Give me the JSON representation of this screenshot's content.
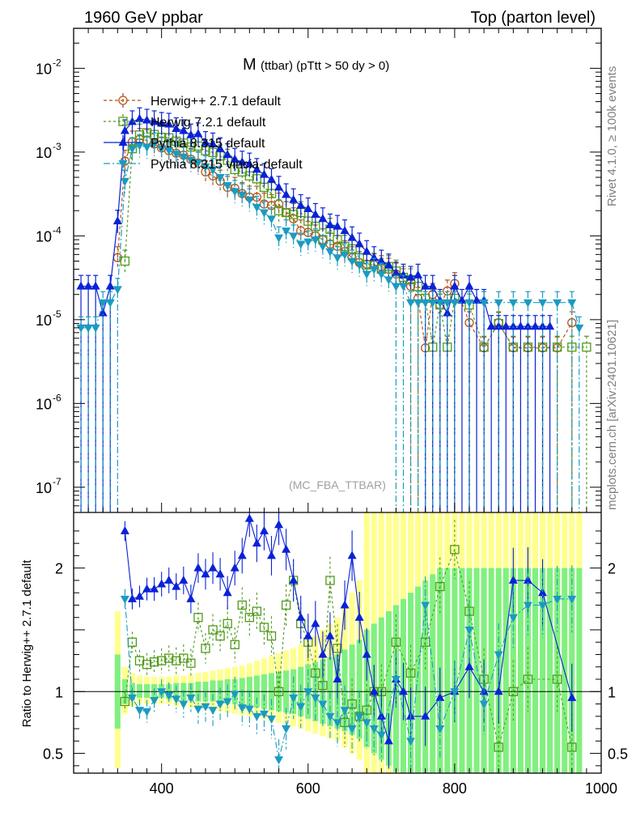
{
  "header": {
    "left": "1960 GeV ppbar",
    "right": "Top (parton level)"
  },
  "side_labels": {
    "rivet": "Rivet 4.1.0, ≥ 100k events",
    "mcplots": "mcplots.cern.ch [arXiv:2401.10621]"
  },
  "colors": {
    "herwigpp": "#b5541b",
    "herwig7": "#4f9a1a",
    "pythia": "#0a22d6",
    "vincia": "#1a9bc0",
    "band_yellow": "#ffff8c",
    "band_green": "#80f080"
  },
  "chart_data": {
    "type": "line",
    "title_main": "M",
    "title_sub": "(ttbar) (pTtt > 50 dy > 0)",
    "watermark": "(MC_FBA_TTBAR)",
    "xlabel": "",
    "ylabel_ratio": "Ratio to Herwig++ 2.7.1 default",
    "xlim": [
      280,
      1000
    ],
    "ylim_main": [
      5e-08,
      0.03
    ],
    "ylim_ratio": [
      0.34,
      2.45
    ],
    "xticks": [
      400,
      600,
      800,
      1000
    ],
    "yticks_main": [
      {
        "mant": "10",
        "exp": "-2",
        "v": 0.01
      },
      {
        "mant": "10",
        "exp": "-3",
        "v": 0.001
      },
      {
        "mant": "10",
        "exp": "-4",
        "v": 0.0001
      },
      {
        "mant": "10",
        "exp": "-5",
        "v": 1e-05
      },
      {
        "mant": "10",
        "exp": "-6",
        "v": 1e-06
      },
      {
        "mant": "10",
        "exp": "-7",
        "v": 1e-07
      }
    ],
    "yticks_ratio": [
      {
        "label": "0.5",
        "v": 0.5
      },
      {
        "label": "1",
        "v": 1
      },
      {
        "label": "2",
        "v": 2
      }
    ],
    "series": [
      {
        "name": "Herwig++ 2.7.1 default",
        "key": "herwigpp",
        "marker": "circle",
        "dash": "4,3",
        "x": [
          300,
          310,
          320,
          330,
          340,
          350,
          360,
          370,
          380,
          390,
          400,
          410,
          420,
          430,
          440,
          450,
          460,
          470,
          480,
          490,
          500,
          510,
          520,
          530,
          540,
          550,
          560,
          570,
          580,
          590,
          600,
          610,
          620,
          630,
          640,
          650,
          660,
          670,
          680,
          690,
          700,
          710,
          720,
          730,
          740,
          750,
          760,
          770,
          780,
          790,
          800,
          820,
          840,
          860,
          880,
          900,
          920,
          940,
          960
        ],
        "y": [
          null,
          null,
          null,
          null,
          5.5e-05,
          0.00078,
          0.00132,
          0.00142,
          0.00138,
          0.00125,
          0.00112,
          0.00104,
          0.00097,
          0.00092,
          0.00082,
          0.00074,
          0.00058,
          0.00052,
          0.00045,
          0.00038,
          0.00037,
          0.00032,
          0.00029,
          0.00029,
          0.00024,
          0.00023,
          0.00024,
          0.00019,
          0.00016,
          0.000115,
          0.00011,
          0.0001,
          9e-05,
          8e-05,
          7.5e-05,
          6.5e-05,
          5.5e-05,
          4.8e-05,
          4.6e-05,
          4.5e-05,
          4.3e-05,
          4e-05,
          3.5e-05,
          3e-05,
          2.5e-05,
          1.8e-05,
          4.6e-06,
          2e-05,
          1.5e-05,
          2.2e-05,
          2.7e-05,
          9.2e-06,
          4.6e-06,
          9.2e-06,
          4.6e-06,
          4.6e-06,
          4.6e-06,
          4.6e-06,
          9.2e-06
        ],
        "ratio": []
      },
      {
        "name": "Herwig 7.2.1 default",
        "key": "herwig7",
        "marker": "square",
        "dash": "3,3",
        "x": [
          350,
          360,
          370,
          380,
          390,
          400,
          410,
          420,
          430,
          440,
          450,
          460,
          470,
          480,
          490,
          500,
          510,
          520,
          530,
          540,
          550,
          560,
          570,
          580,
          590,
          600,
          610,
          620,
          630,
          640,
          650,
          660,
          670,
          680,
          690,
          700,
          710,
          720,
          730,
          740,
          750,
          760,
          770,
          780,
          790,
          800,
          820,
          840,
          860,
          880,
          900,
          920,
          940,
          960,
          980
        ],
        "y": [
          5e-05,
          0.0011,
          0.0016,
          0.0017,
          0.00162,
          0.0015,
          0.00148,
          0.00135,
          0.00128,
          0.00115,
          0.00118,
          0.00104,
          0.00099,
          0.0009,
          0.0008,
          0.00062,
          0.00058,
          0.00052,
          0.00048,
          0.00038,
          0.00032,
          0.0002,
          0.00019,
          0.00018,
          0.00019,
          0.00015,
          0.00013,
          9e-05,
          0.00012,
          9e-05,
          7.5e-05,
          7e-05,
          5.5e-05,
          4.5e-05,
          4.6e-05,
          4e-05,
          4.3e-05,
          3.8e-05,
          3.2e-05,
          3e-05,
          2.5e-05,
          1.8e-05,
          4.7e-06,
          1.5e-05,
          4.7e-06,
          1.8e-05,
          1.5e-05,
          4.7e-06,
          9e-06,
          4.7e-06,
          4.7e-06,
          4.7e-06,
          4.7e-06,
          4.7e-06,
          4.7e-06
        ],
        "ratio": []
      },
      {
        "name": "Pythia 8.315 default",
        "key": "pythia",
        "marker": "triup",
        "dash": "",
        "x": [
          290,
          300,
          310,
          320,
          330,
          340,
          350,
          360,
          370,
          380,
          390,
          400,
          410,
          420,
          430,
          440,
          450,
          460,
          470,
          480,
          490,
          500,
          510,
          520,
          530,
          540,
          550,
          560,
          570,
          580,
          590,
          600,
          610,
          620,
          630,
          640,
          650,
          660,
          670,
          680,
          690,
          700,
          710,
          720,
          730,
          740,
          750,
          760,
          770,
          780,
          790,
          800,
          810,
          820,
          830,
          840,
          850,
          860,
          870,
          880,
          890,
          900,
          910,
          920,
          930
        ],
        "y": [
          2.5e-05,
          2.5e-05,
          2.5e-05,
          1.2e-05,
          2.5e-05,
          0.00015,
          0.0018,
          0.0023,
          0.0025,
          0.0024,
          0.0023,
          0.0022,
          0.00215,
          0.0019,
          0.0018,
          0.0016,
          0.00165,
          0.0013,
          0.00125,
          0.0011,
          0.00093,
          0.00082,
          0.00076,
          0.00072,
          0.00062,
          0.00054,
          0.00047,
          0.00038,
          0.00031,
          0.00027,
          0.00023,
          0.00021,
          0.00018,
          0.00016,
          0.000135,
          0.00013,
          0.000115,
          9.5e-05,
          8e-05,
          6.5e-05,
          5.5e-05,
          5e-05,
          4.5e-05,
          3.6e-05,
          3.4e-05,
          3.2e-05,
          3.4e-05,
          2.5e-05,
          2.5e-05,
          1.7e-05,
          1.2e-05,
          2.5e-05,
          1.7e-05,
          2.5e-05,
          1.7e-05,
          1.7e-05,
          8.3e-06,
          8.3e-06,
          8.3e-06,
          8.3e-06,
          8.3e-06,
          8.3e-06,
          8.3e-06,
          8.3e-06,
          8.3e-06
        ],
        "ratio": []
      },
      {
        "name": "Pythia 8.315 vincia-default",
        "key": "vincia",
        "marker": "tridown",
        "dash": "8,3,2,3",
        "x": [
          290,
          300,
          310,
          320,
          330,
          340,
          350,
          360,
          370,
          380,
          390,
          400,
          410,
          420,
          430,
          440,
          450,
          460,
          470,
          480,
          490,
          500,
          510,
          520,
          530,
          540,
          550,
          560,
          570,
          580,
          590,
          600,
          610,
          620,
          630,
          640,
          650,
          660,
          670,
          680,
          690,
          700,
          710,
          720,
          730,
          740,
          750,
          760,
          770,
          780,
          790,
          800,
          820,
          840,
          860,
          880,
          900,
          920,
          940,
          960,
          970
        ],
        "y": [
          8e-06,
          8e-06,
          8e-06,
          1.6e-05,
          1.6e-05,
          2.3e-05,
          0.00045,
          0.0011,
          0.0012,
          0.00115,
          0.00125,
          0.0011,
          0.00105,
          0.00095,
          0.00088,
          0.0008,
          0.00075,
          0.00067,
          0.00062,
          0.0005,
          0.0004,
          0.00034,
          0.00031,
          0.00027,
          0.00022,
          0.00019,
          0.00016,
          9.5e-05,
          0.000115,
          0.0001,
          8e-05,
          8.5e-05,
          9e-05,
          7.5e-05,
          6.5e-05,
          5.5e-05,
          6e-05,
          5e-05,
          4.5e-05,
          3.5e-05,
          4e-05,
          3.5e-05,
          3e-05,
          2.5e-05,
          2.5e-05,
          1.6e-05,
          1.6e-05,
          1.6e-05,
          1.6e-05,
          1.6e-05,
          1.6e-05,
          1.6e-05,
          1.6e-05,
          1.6e-05,
          1.6e-05,
          1.6e-05,
          1.6e-05,
          1.6e-05,
          1.6e-05,
          1.6e-05,
          8e-06
        ],
        "ratio": []
      }
    ],
    "ratio_series": [
      {
        "key": "herwig7",
        "x": [
          350,
          360,
          370,
          380,
          390,
          400,
          410,
          420,
          430,
          440,
          450,
          460,
          470,
          480,
          490,
          500,
          510,
          520,
          530,
          540,
          550,
          560,
          570,
          580,
          590,
          600,
          610,
          620,
          630,
          640,
          650,
          660,
          670,
          680,
          690,
          700,
          720,
          740,
          760,
          780,
          800,
          820,
          840,
          860,
          880,
          900,
          940,
          960
        ],
        "y": [
          0.92,
          1.4,
          1.25,
          1.22,
          1.24,
          1.25,
          1.27,
          1.25,
          1.27,
          1.23,
          1.6,
          1.35,
          1.5,
          1.45,
          1.55,
          1.38,
          1.7,
          1.6,
          1.65,
          1.52,
          1.45,
          1.0,
          1.7,
          1.9,
          1.55,
          1.4,
          1.15,
          1.05,
          1.9,
          1.35,
          0.75,
          0.9,
          0.8,
          0.85,
          1.0,
          1.0,
          1.4,
          1.15,
          1.4,
          1.85,
          2.15,
          1.65,
          1.1,
          0.55,
          1.0,
          1.1,
          1.1,
          0.55
        ]
      },
      {
        "key": "pythia",
        "x": [
          350,
          360,
          370,
          380,
          390,
          400,
          410,
          420,
          430,
          440,
          450,
          460,
          470,
          480,
          490,
          500,
          510,
          520,
          530,
          540,
          550,
          560,
          570,
          580,
          590,
          600,
          610,
          620,
          630,
          640,
          650,
          660,
          670,
          680,
          690,
          700,
          710,
          720,
          730,
          740,
          760,
          780,
          800,
          820,
          840,
          860,
          880,
          900,
          920,
          960
        ],
        "y": [
          2.3,
          1.75,
          1.77,
          1.83,
          1.83,
          1.87,
          1.9,
          1.85,
          1.9,
          1.75,
          2.0,
          1.95,
          2.0,
          1.95,
          1.8,
          2.0,
          2.1,
          2.4,
          2.2,
          2.3,
          2.1,
          2.35,
          2.15,
          1.9,
          1.6,
          1.45,
          1.55,
          1.3,
          1.45,
          1.1,
          1.7,
          2.1,
          1.6,
          1.3,
          1.0,
          0.8,
          0.6,
          1.1,
          1.0,
          0.8,
          0.8,
          0.95,
          1.0,
          1.2,
          1.0,
          1.0,
          1.9,
          1.9,
          1.8,
          0.95
        ]
      },
      {
        "key": "vincia",
        "x": [
          350,
          360,
          370,
          380,
          390,
          400,
          410,
          420,
          430,
          440,
          450,
          460,
          470,
          480,
          490,
          500,
          510,
          520,
          530,
          540,
          550,
          560,
          570,
          580,
          590,
          600,
          610,
          620,
          630,
          640,
          650,
          660,
          670,
          680,
          690,
          700,
          720,
          740,
          760,
          780,
          800,
          820,
          840,
          860,
          880,
          900,
          920,
          940,
          960
        ],
        "y": [
          1.75,
          0.95,
          0.85,
          0.84,
          0.93,
          1.0,
          0.97,
          0.94,
          0.9,
          0.95,
          0.86,
          0.88,
          0.85,
          0.9,
          0.92,
          0.98,
          0.87,
          0.86,
          0.8,
          0.82,
          0.78,
          0.45,
          0.7,
          0.95,
          0.88,
          1.0,
          0.95,
          0.9,
          0.8,
          0.75,
          0.85,
          0.7,
          0.8,
          0.75,
          0.7,
          0.65,
          1.1,
          0.6,
          1.7,
          0.7,
          1.0,
          1.5,
          0.9,
          1.3,
          1.6,
          1.7,
          1.7,
          1.75,
          1.75
        ]
      }
    ],
    "ratio_bands": {
      "x": [
        340,
        350,
        360,
        370,
        380,
        390,
        400,
        410,
        420,
        430,
        440,
        450,
        460,
        470,
        480,
        490,
        500,
        510,
        520,
        530,
        540,
        550,
        560,
        570,
        580,
        590,
        600,
        610,
        620,
        630,
        640,
        650,
        660,
        670,
        680,
        690,
        700,
        710,
        720,
        730,
        740,
        750,
        760,
        770,
        780,
        790,
        800,
        810,
        820,
        830,
        840,
        850,
        860,
        870,
        880,
        890,
        900,
        910,
        920,
        930,
        940,
        950,
        960,
        970
      ],
      "yellow_lo": [
        0.38,
        0.82,
        0.88,
        0.9,
        0.9,
        0.9,
        0.9,
        0.9,
        0.88,
        0.88,
        0.87,
        0.86,
        0.86,
        0.85,
        0.84,
        0.83,
        0.82,
        0.81,
        0.8,
        0.79,
        0.78,
        0.76,
        0.75,
        0.74,
        0.72,
        0.7,
        0.68,
        0.66,
        0.64,
        0.62,
        0.6,
        0.55,
        0.5,
        0.45,
        0.3,
        0.3,
        0.3,
        0.3,
        0.3,
        0.3,
        0.3,
        0.3,
        0.3,
        0.3,
        0.3,
        0.3,
        0.3,
        0.3,
        0.3,
        0.3,
        0.3,
        0.3,
        0.3,
        0.3,
        0.3,
        0.3,
        0.3,
        0.3,
        0.3,
        0.3,
        0.3,
        0.3,
        0.3,
        0.3
      ],
      "yellow_hi": [
        1.65,
        1.2,
        1.15,
        1.13,
        1.12,
        1.12,
        1.12,
        1.12,
        1.13,
        1.13,
        1.14,
        1.15,
        1.16,
        1.17,
        1.18,
        1.19,
        1.2,
        1.21,
        1.23,
        1.25,
        1.27,
        1.29,
        1.31,
        1.33,
        1.35,
        1.38,
        1.42,
        1.45,
        1.5,
        1.55,
        1.6,
        1.7,
        1.8,
        1.9,
        2.5,
        2.5,
        2.5,
        2.5,
        2.5,
        2.5,
        2.5,
        2.5,
        2.5,
        2.5,
        2.5,
        2.5,
        2.5,
        2.5,
        2.5,
        2.5,
        2.5,
        2.5,
        2.5,
        2.5,
        2.5,
        2.5,
        2.5,
        2.5,
        2.5,
        2.5,
        2.5,
        2.5,
        2.5,
        2.5
      ],
      "green_lo": [
        0.7,
        0.9,
        0.93,
        0.95,
        0.95,
        0.95,
        0.95,
        0.94,
        0.94,
        0.93,
        0.93,
        0.92,
        0.92,
        0.92,
        0.91,
        0.9,
        0.9,
        0.89,
        0.88,
        0.87,
        0.86,
        0.85,
        0.84,
        0.83,
        0.82,
        0.8,
        0.78,
        0.76,
        0.74,
        0.72,
        0.7,
        0.68,
        0.65,
        0.62,
        0.55,
        0.5,
        0.45,
        0.4,
        0.35,
        0.3,
        0.3,
        0.3,
        0.3,
        0.3,
        0.3,
        0.3,
        0.3,
        0.3,
        0.3,
        0.3,
        0.3,
        0.3,
        0.3,
        0.3,
        0.3,
        0.3,
        0.3,
        0.3,
        0.3,
        0.3,
        0.3,
        0.3,
        0.3,
        0.3
      ],
      "green_hi": [
        1.3,
        1.1,
        1.07,
        1.06,
        1.06,
        1.06,
        1.06,
        1.06,
        1.07,
        1.07,
        1.07,
        1.08,
        1.08,
        1.09,
        1.09,
        1.1,
        1.1,
        1.11,
        1.12,
        1.13,
        1.14,
        1.15,
        1.16,
        1.17,
        1.18,
        1.2,
        1.22,
        1.24,
        1.26,
        1.28,
        1.3,
        1.34,
        1.38,
        1.42,
        1.5,
        1.55,
        1.6,
        1.65,
        1.7,
        1.75,
        1.8,
        1.85,
        1.9,
        1.95,
        2.0,
        2.0,
        2.0,
        2.0,
        2.0,
        2.0,
        2.0,
        2.0,
        2.0,
        2.0,
        2.0,
        2.0,
        2.0,
        2.0,
        2.0,
        2.0,
        2.0,
        2.0,
        2.0,
        2.0
      ]
    }
  }
}
